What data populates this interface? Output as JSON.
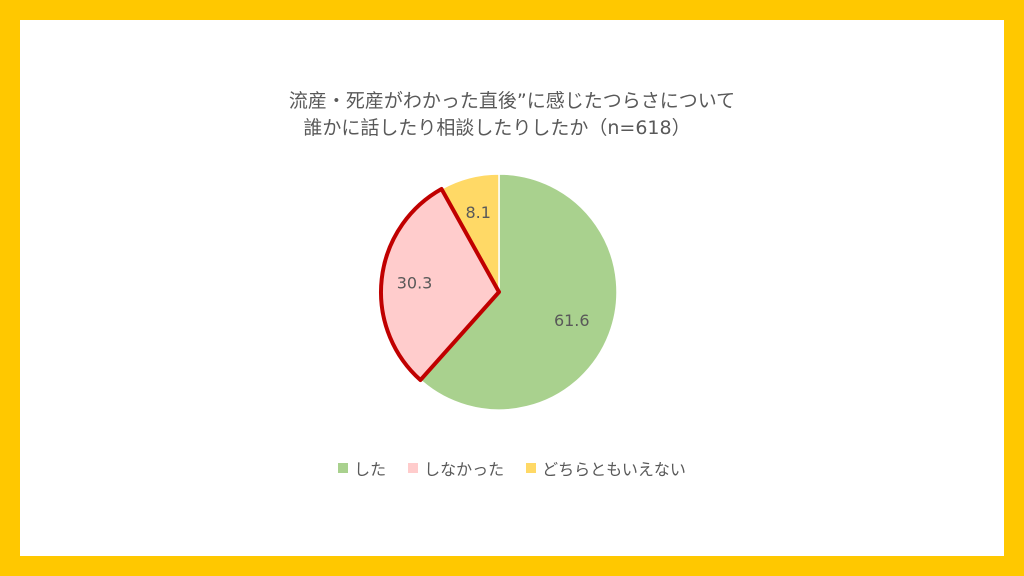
{
  "chart_data": {
    "type": "pie",
    "title_line1": "流産・死産がわかった直後”に感じたつらさについて",
    "title_line2": "誰かに話したり相談したりしたか（n=618）",
    "slices": [
      {
        "label": "した",
        "value": 61.6,
        "display": "61.6",
        "color": "#A9D18E"
      },
      {
        "label": "しなかった",
        "value": 30.3,
        "display": "30.3",
        "color": "#FFCCCC",
        "highlight_color": "#C00000"
      },
      {
        "label": "どちらともいえない",
        "value": 8.1,
        "display": "8.1",
        "color": "#FFD966"
      }
    ],
    "legend_position": "bottom"
  },
  "colors": {
    "frame": "#FFC800",
    "background": "#FFFFFF",
    "text": "#595959"
  }
}
